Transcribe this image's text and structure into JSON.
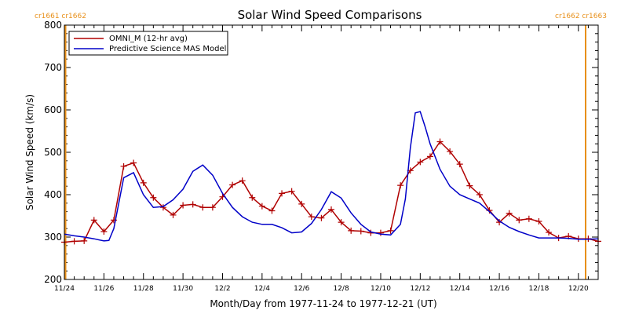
{
  "chart_data": {
    "type": "line",
    "title": "Solar Wind Speed Comparisons",
    "xlabel": "Month/Day from 1977-11-24 to 1977-12-21 (UT)",
    "ylabel": "Solar Wind Speed (km/s)",
    "xlim": [
      "1977-11-24",
      "1977-12-21"
    ],
    "ylim": [
      200,
      800
    ],
    "y_ticks": [
      200,
      300,
      400,
      500,
      600,
      700,
      800
    ],
    "x_ticks": [
      "11/24",
      "11/26",
      "11/28",
      "11/30",
      "12/2",
      "12/4",
      "12/6",
      "12/8",
      "12/10",
      "12/12",
      "12/14",
      "12/16",
      "12/18",
      "12/20"
    ],
    "legend_position": "top-left",
    "carrington_labels": {
      "left": "cr1661 cr1662",
      "right": "cr1662 cr1663",
      "color": "#e8901a",
      "left_date": "1977-11-24",
      "right_date": "1977-12-21"
    },
    "series": [
      {
        "name": "OMNI_M (12-hr avg)",
        "color": "#b00000",
        "marker": "plus",
        "x": [
          "1977-11-24 00:00",
          "1977-11-24 12:00",
          "1977-11-25 00:00",
          "1977-11-25 12:00",
          "1977-11-26 00:00",
          "1977-11-26 12:00",
          "1977-11-27 00:00",
          "1977-11-27 12:00",
          "1977-11-28 00:00",
          "1977-11-28 12:00",
          "1977-11-29 00:00",
          "1977-11-29 12:00",
          "1977-11-30 00:00",
          "1977-11-30 12:00",
          "1977-12-01 00:00",
          "1977-12-01 12:00",
          "1977-12-02 00:00",
          "1977-12-02 12:00",
          "1977-12-03 00:00",
          "1977-12-03 12:00",
          "1977-12-04 00:00",
          "1977-12-04 12:00",
          "1977-12-05 00:00",
          "1977-12-05 12:00",
          "1977-12-06 00:00",
          "1977-12-06 12:00",
          "1977-12-07 00:00",
          "1977-12-07 12:00",
          "1977-12-08 00:00",
          "1977-12-08 12:00",
          "1977-12-09 00:00",
          "1977-12-09 12:00",
          "1977-12-10 00:00",
          "1977-12-10 12:00",
          "1977-12-11 00:00",
          "1977-12-11 12:00",
          "1977-12-12 00:00",
          "1977-12-12 12:00",
          "1977-12-13 00:00",
          "1977-12-13 12:00",
          "1977-12-14 00:00",
          "1977-12-14 12:00",
          "1977-12-15 00:00",
          "1977-12-15 12:00",
          "1977-12-16 00:00",
          "1977-12-16 12:00",
          "1977-12-17 00:00",
          "1977-12-17 12:00",
          "1977-12-18 00:00",
          "1977-12-18 12:00",
          "1977-12-19 00:00",
          "1977-12-19 12:00",
          "1977-12-20 00:00",
          "1977-12-20 12:00",
          "1977-12-21 00:00"
        ],
        "y": [
          288,
          290,
          291,
          340,
          313,
          340,
          467,
          475,
          428,
          393,
          370,
          352,
          375,
          377,
          370,
          370,
          395,
          423,
          433,
          393,
          373,
          362,
          403,
          408,
          378,
          348,
          345,
          365,
          335,
          315,
          314,
          310,
          310,
          315,
          422,
          457,
          477,
          490,
          525,
          502,
          472,
          421,
          400,
          363,
          335,
          356,
          340,
          343,
          337,
          311,
          298,
          302,
          296,
          296,
          290
        ]
      },
      {
        "name": "Predictive Science MAS Model",
        "color": "#0000c8",
        "marker": "none",
        "x": [
          "1977-11-24 00:00",
          "1977-11-24 12:00",
          "1977-11-25 00:00",
          "1977-11-25 12:00",
          "1977-11-26 00:00",
          "1977-11-26 06:00",
          "1977-11-26 12:00",
          "1977-11-27 00:00",
          "1977-11-27 12:00",
          "1977-11-28 00:00",
          "1977-11-28 12:00",
          "1977-11-29 00:00",
          "1977-11-29 12:00",
          "1977-11-30 00:00",
          "1977-11-30 12:00",
          "1977-12-01 00:00",
          "1977-12-01 12:00",
          "1977-12-02 00:00",
          "1977-12-02 12:00",
          "1977-12-03 00:00",
          "1977-12-03 12:00",
          "1977-12-04 00:00",
          "1977-12-04 12:00",
          "1977-12-05 00:00",
          "1977-12-05 12:00",
          "1977-12-06 00:00",
          "1977-12-06 12:00",
          "1977-12-07 00:00",
          "1977-12-07 12:00",
          "1977-12-08 00:00",
          "1977-12-08 12:00",
          "1977-12-09 00:00",
          "1977-12-09 12:00",
          "1977-12-10 00:00",
          "1977-12-10 12:00",
          "1977-12-11 00:00",
          "1977-12-11 06:00",
          "1977-12-11 12:00",
          "1977-12-11 18:00",
          "1977-12-12 00:00",
          "1977-12-12 06:00",
          "1977-12-12 12:00",
          "1977-12-13 00:00",
          "1977-12-13 12:00",
          "1977-12-14 00:00",
          "1977-12-14 12:00",
          "1977-12-15 00:00",
          "1977-12-15 12:00",
          "1977-12-16 00:00",
          "1977-12-16 12:00",
          "1977-12-17 00:00",
          "1977-12-17 12:00",
          "1977-12-18 00:00",
          "1977-12-18 12:00",
          "1977-12-19 00:00",
          "1977-12-19 12:00",
          "1977-12-20 00:00",
          "1977-12-20 12:00",
          "1977-12-21 00:00"
        ],
        "y": [
          307,
          303,
          300,
          296,
          291,
          292,
          320,
          440,
          452,
          400,
          370,
          372,
          388,
          413,
          455,
          470,
          446,
          403,
          370,
          348,
          335,
          330,
          330,
          322,
          310,
          312,
          332,
          365,
          407,
          392,
          357,
          330,
          312,
          307,
          305,
          330,
          390,
          510,
          593,
          596,
          560,
          520,
          460,
          420,
          400,
          390,
          380,
          360,
          338,
          323,
          313,
          305,
          298,
          298,
          298,
          297,
          295,
          295,
          296
        ]
      }
    ]
  }
}
